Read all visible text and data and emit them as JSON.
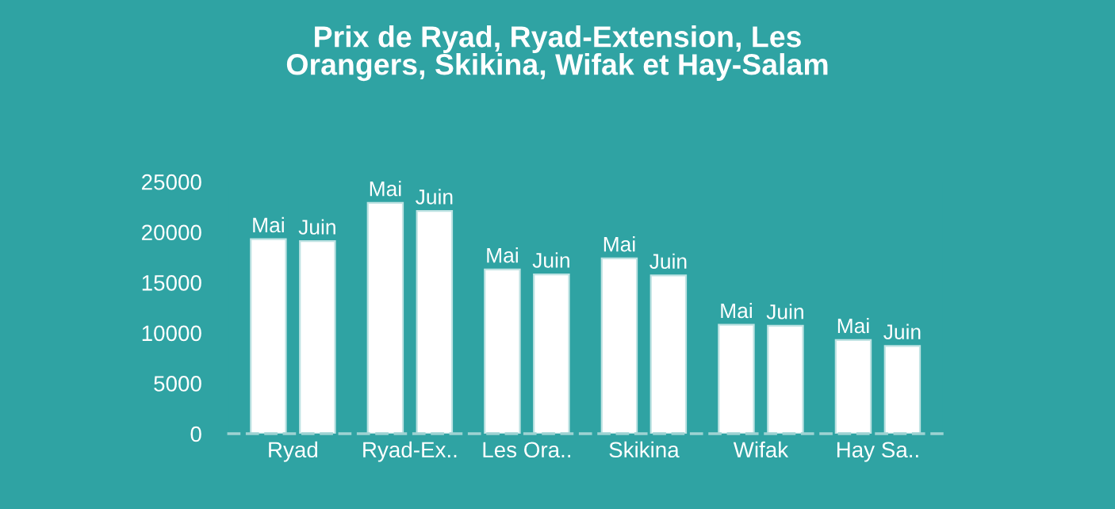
{
  "chart_data": {
    "type": "bar",
    "title": "Prix de Ryad, Ryad-Extension, Les\nOrangers, Skikina, Wifak et Hay-Salam",
    "categories": [
      "Ryad",
      "Ryad-Ex..",
      "Les Ora..",
      "Skikina",
      "Wifak",
      "Hay Sa.."
    ],
    "series": [
      {
        "name": "Mai",
        "color": "#ffffff",
        "values": [
          19300,
          22900,
          16300,
          17400,
          10800,
          9300
        ]
      },
      {
        "name": "Juin",
        "color": "#ffffff",
        "values": [
          19100,
          22100,
          15800,
          15700,
          10700,
          8700
        ]
      }
    ],
    "ylim": [
      0,
      25000
    ],
    "yticks": [
      0,
      5000,
      10000,
      15000,
      20000,
      25000
    ],
    "grid": false,
    "legend": false
  }
}
